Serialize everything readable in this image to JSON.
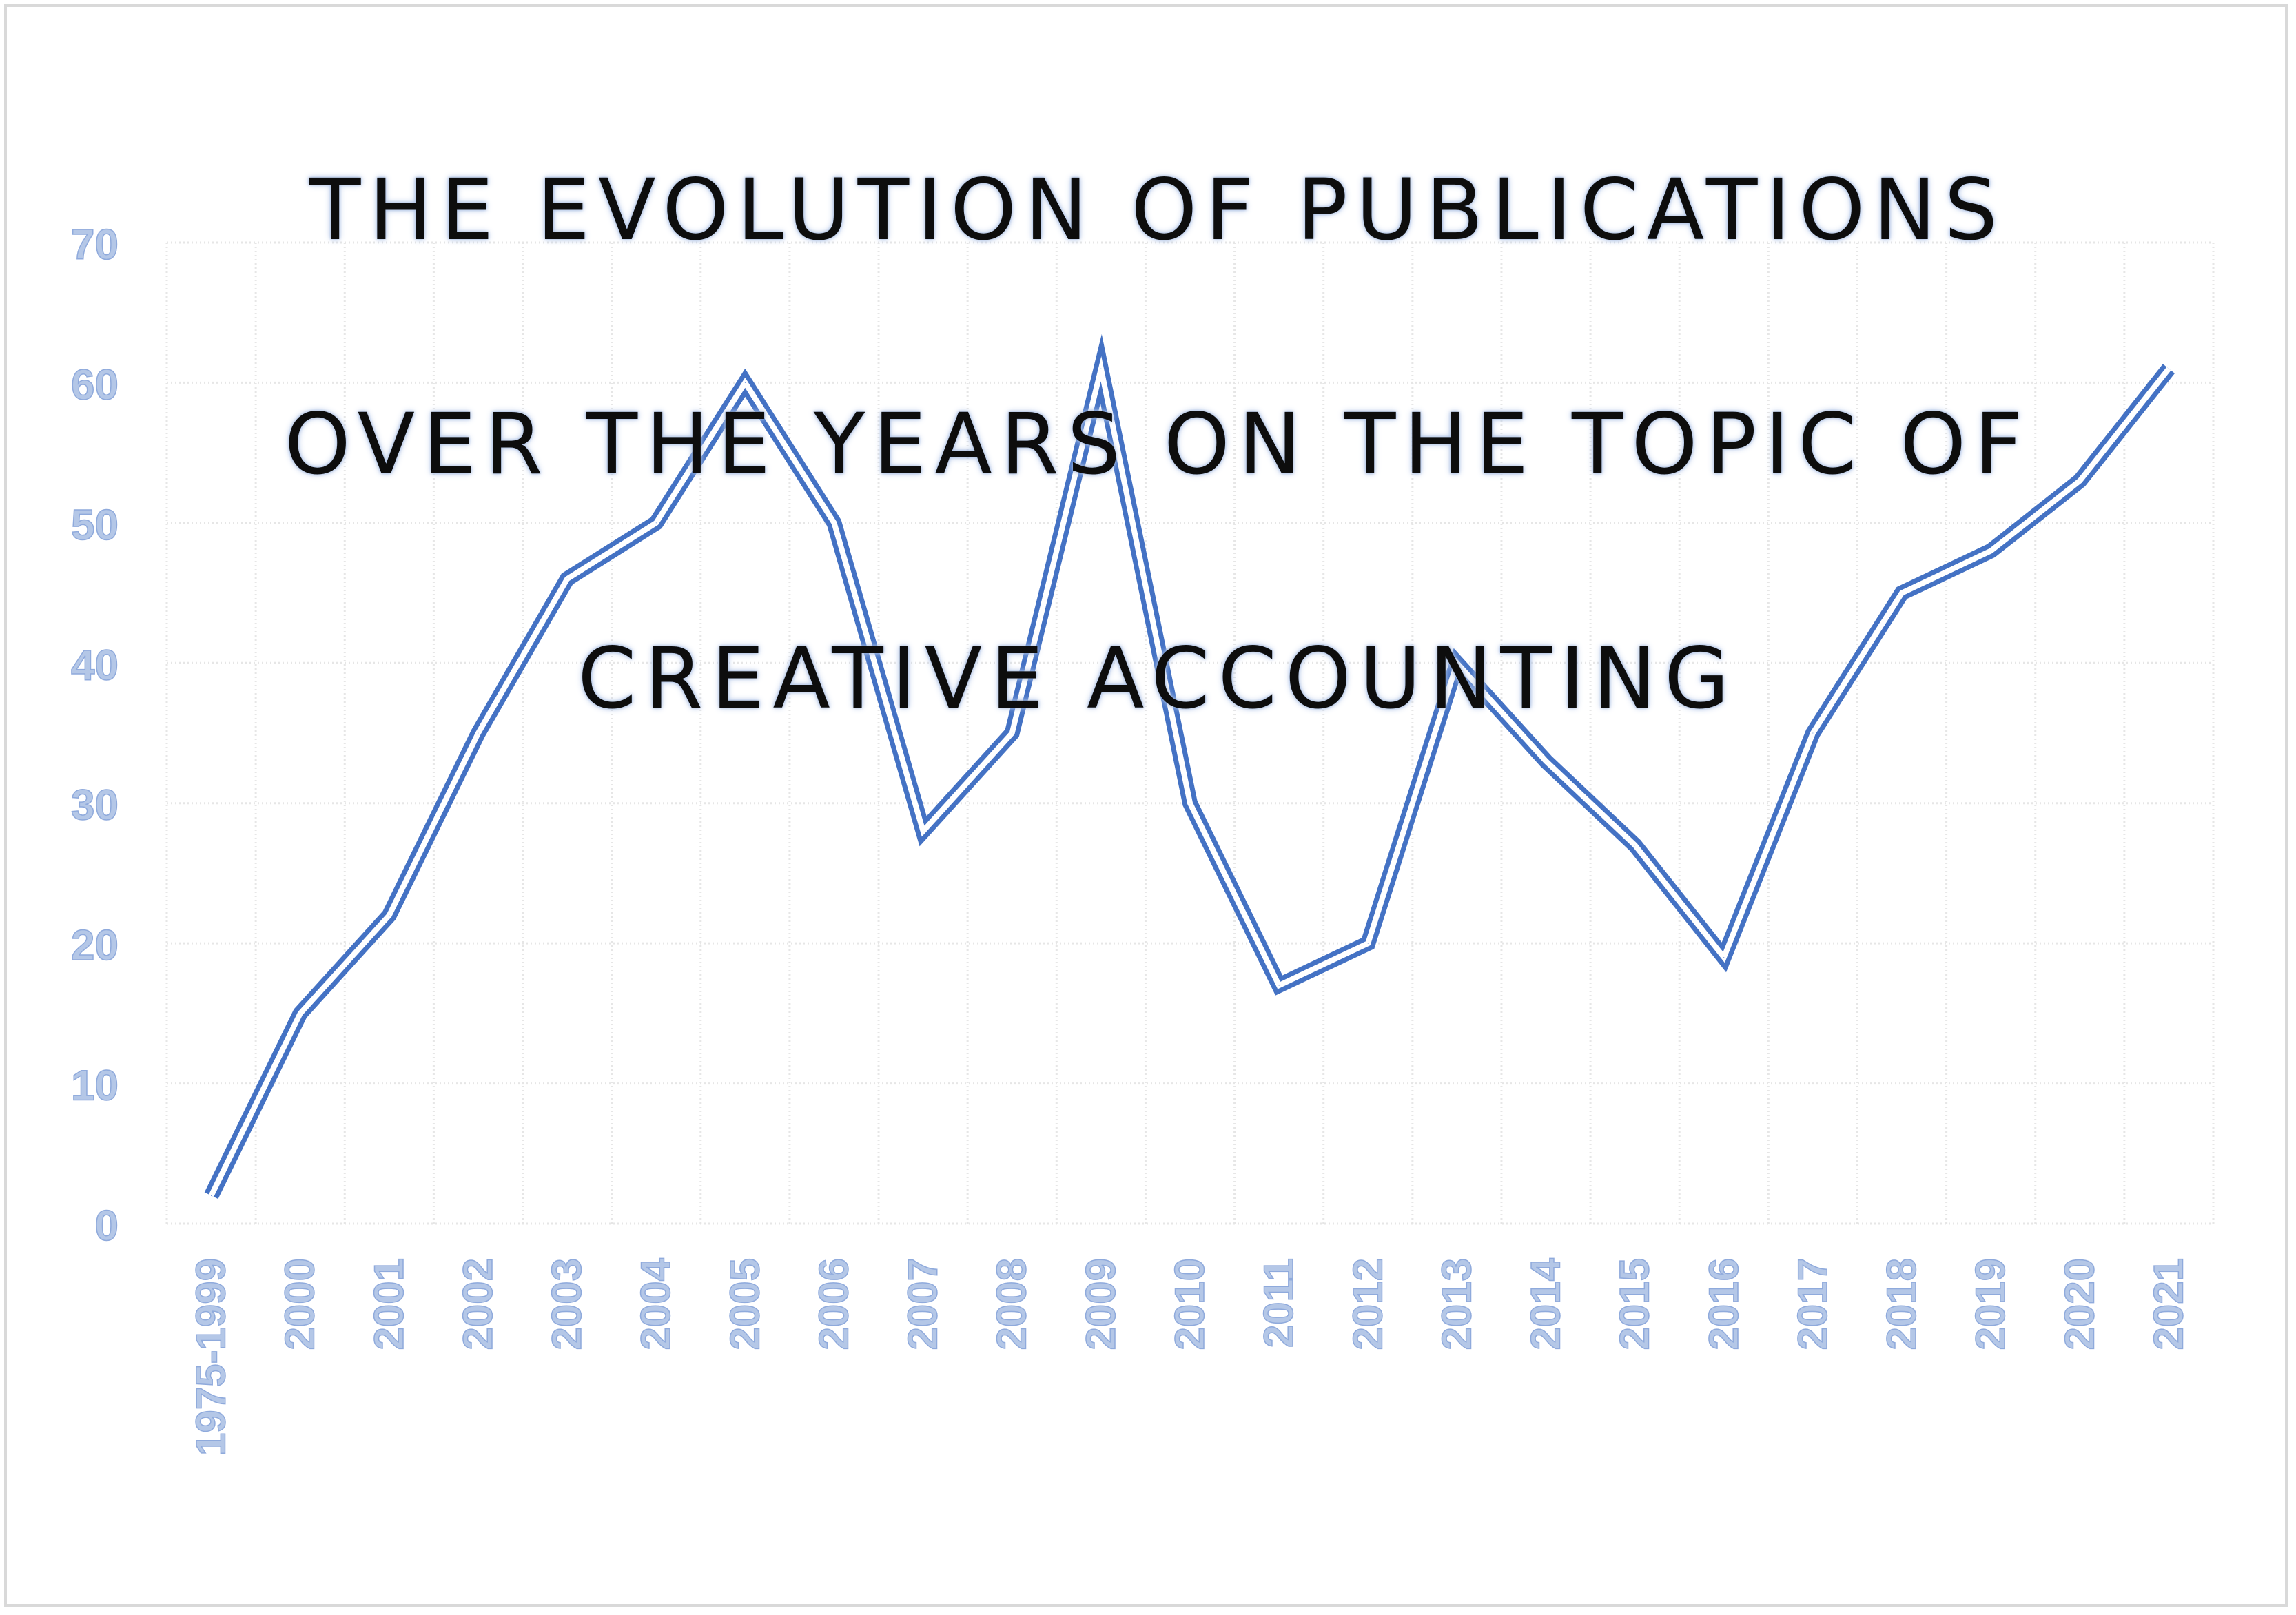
{
  "chart_data": {
    "type": "line",
    "title": "THE EVOLUTION OF PUBLICATIONS OVER THE YEARS ON THE TOPIC OF CREATIVE ACCOUNTING",
    "title_lines": [
      "THE EVOLUTION OF PUBLICATIONS",
      "OVER THE YEARS ON THE TOPIC OF",
      "CREATIVE ACCOUNTING"
    ],
    "xlabel": "",
    "ylabel": "",
    "categories": [
      "1975-1999",
      "2000",
      "2001",
      "2002",
      "2003",
      "2004",
      "2005",
      "2006",
      "2007",
      "2008",
      "2009",
      "2010",
      "2011",
      "2012",
      "2013",
      "2014",
      "2015",
      "2016",
      "2017",
      "2018",
      "2019",
      "2020",
      "2021"
    ],
    "series": [
      {
        "values": [
          2,
          15,
          22,
          35,
          46,
          50,
          60,
          50,
          28,
          35,
          61,
          30,
          17,
          20,
          40,
          33,
          27,
          19,
          35,
          45,
          48,
          53,
          61
        ]
      }
    ],
    "ylim": [
      0,
      70
    ],
    "yticks": [
      0,
      10,
      20,
      30,
      40,
      50,
      60,
      70
    ],
    "grid": true,
    "legend": "none",
    "colors": {
      "line": "#4472c4",
      "tick_label": "#b4c7e7",
      "grid": "#e6e6e6",
      "title_glow": "#b4c7e7"
    }
  }
}
